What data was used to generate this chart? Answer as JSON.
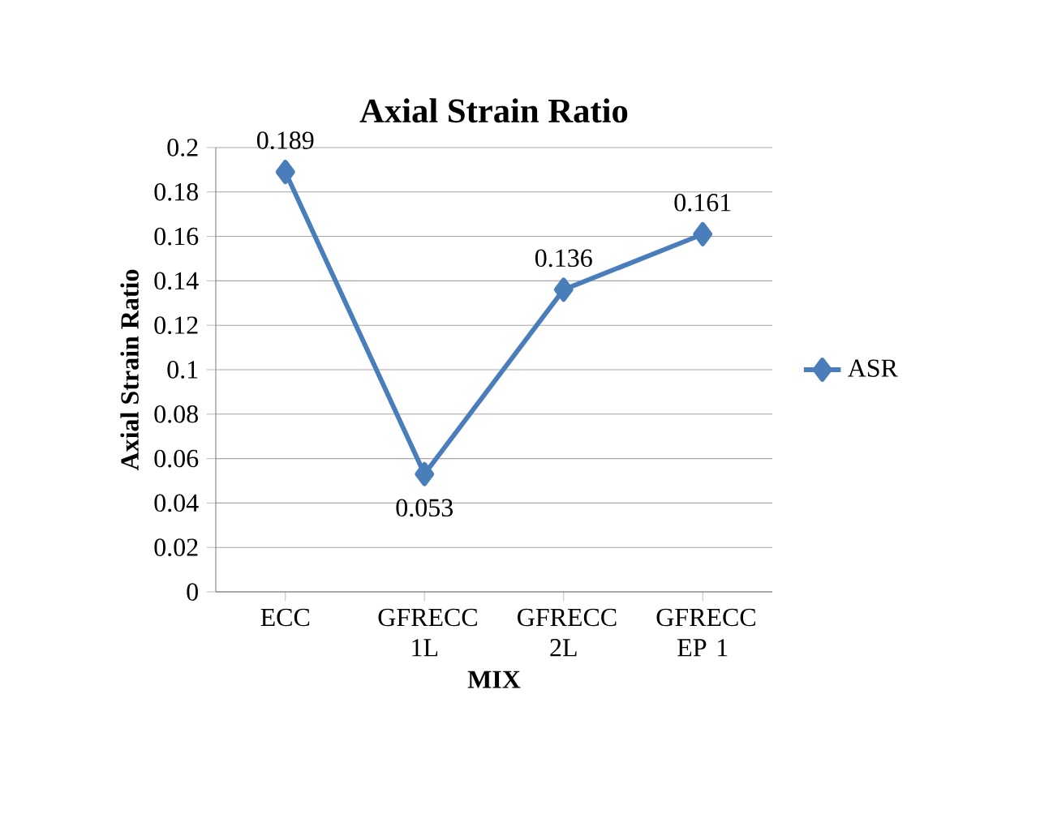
{
  "chart_data": {
    "type": "line",
    "title": "Axial Strain Ratio",
    "xlabel": "MIX",
    "ylabel": "Axial Strain Ratio",
    "categories": [
      "ECC",
      "GFRECC 1L",
      "GFRECC 2L",
      "GFRECC EP 1"
    ],
    "series": [
      {
        "name": "ASR",
        "color": "#4a7ebb",
        "values": [
          0.189,
          0.053,
          0.136,
          0.161
        ]
      }
    ],
    "ylim": [
      0,
      0.2
    ],
    "yticks": [
      0,
      0.02,
      0.04,
      0.06,
      0.08,
      0.1,
      0.12,
      0.14,
      0.16,
      0.18,
      0.2
    ],
    "grid": "y",
    "legend": "right",
    "marker": "diamond",
    "line_style": "solid",
    "data_labels": true
  }
}
